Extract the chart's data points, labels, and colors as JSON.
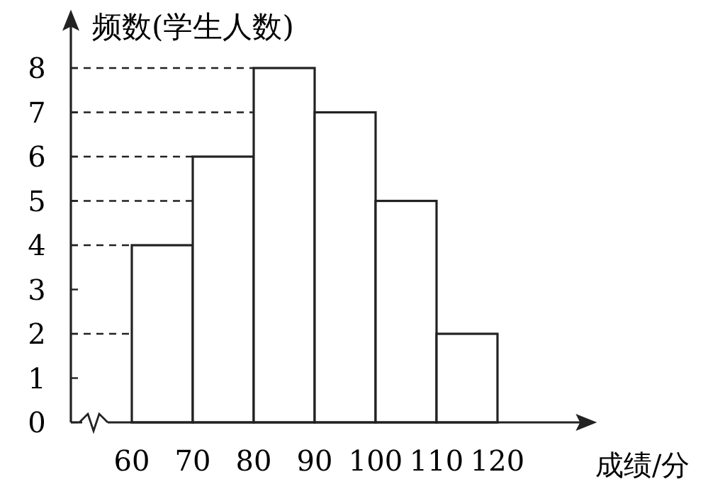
{
  "chart_data": {
    "type": "histogram",
    "xlabel": "成绩/分",
    "ylabel": "频数(学生人数)",
    "bins": [
      60,
      70,
      80,
      90,
      100,
      110,
      120
    ],
    "values": [
      4,
      6,
      8,
      7,
      5,
      2
    ],
    "color": "#ffffff",
    "xlim": [
      50,
      134
    ],
    "ylim": [
      0,
      9
    ],
    "xticks": [
      60,
      70,
      80,
      90,
      100,
      110,
      120
    ],
    "yticks": [
      0,
      1,
      2,
      3,
      4,
      5,
      6,
      7,
      8
    ],
    "ref_lines": [
      {
        "axis": "y",
        "value": 4,
        "line_style": "dashed",
        "color": "#222222"
      },
      {
        "axis": "y",
        "value": 6,
        "line_style": "dashed",
        "color": "#222222"
      },
      {
        "axis": "y",
        "value": 8,
        "line_style": "dashed",
        "color": "#222222"
      },
      {
        "axis": "y",
        "value": 7,
        "line_style": "dashed",
        "color": "#222222"
      },
      {
        "axis": "y",
        "value": 5,
        "line_style": "dashed",
        "color": "#222222"
      },
      {
        "axis": "y",
        "value": 2,
        "line_style": "dashed",
        "color": "#222222"
      }
    ]
  }
}
